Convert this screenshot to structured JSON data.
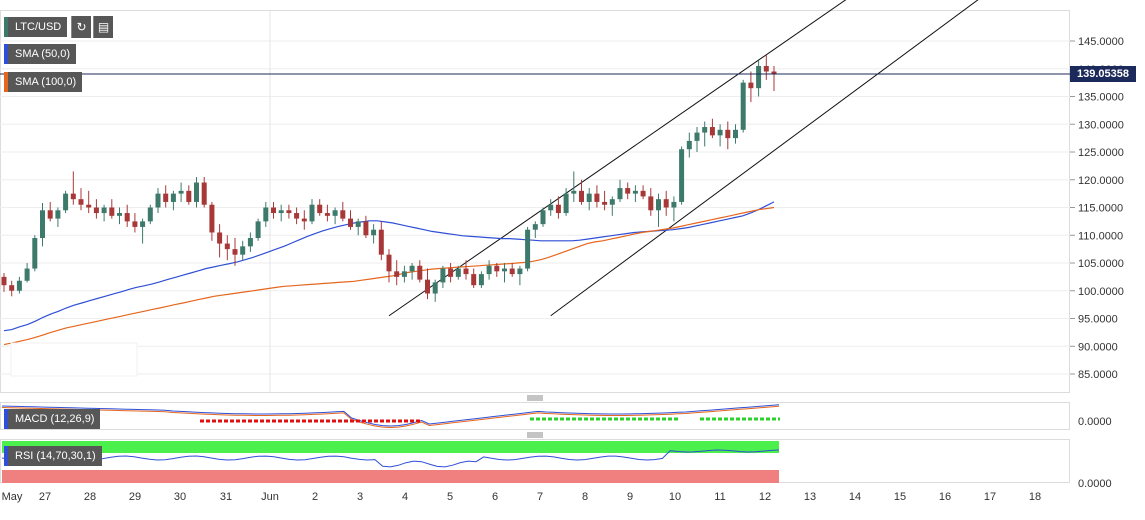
{
  "header": {
    "symbol": "LTC/USD",
    "sma1_label": "SMA (50,0)",
    "sma2_label": "SMA (100,0)",
    "macd_label": "MACD (12,26,9)",
    "rsi_label": "RSI (14,70,30,1)",
    "last_price": "139.05358"
  },
  "colors": {
    "up_candle": "#3d7a6c",
    "down_candle": "#a83838",
    "sma50": "#2f4fd6",
    "sma100": "#e5661e",
    "price_line": "#1b2a5a",
    "rsi_upper": "#4cf04c",
    "rsi_lower": "#f08080"
  },
  "chart_data": [
    {
      "type": "candlestick",
      "title": "LTC/USD",
      "ylim": [
        80,
        150
      ],
      "y_ticks": [
        "145.0000",
        "140.0000",
        "135.0000",
        "130.0000",
        "125.0000",
        "120.0000",
        "115.0000",
        "110.0000",
        "105.0000",
        "100.0000",
        "95.0000",
        "90.0000",
        "85.0000"
      ],
      "x_ticks": [
        "May",
        "27",
        "28",
        "29",
        "30",
        "31",
        "Jun",
        "2",
        "3",
        "4",
        "5",
        "6",
        "7",
        "8",
        "9",
        "10",
        "11",
        "12",
        "13",
        "14",
        "15",
        "16",
        "17",
        "18"
      ],
      "last_price": 139.05358,
      "candles": [
        [
          102.5,
          103.2,
          99.8,
          101.0
        ],
        [
          101.0,
          101.8,
          99.0,
          100.0
        ],
        [
          100.0,
          102.5,
          99.5,
          101.8
        ],
        [
          101.8,
          105.0,
          101.5,
          104.0
        ],
        [
          104.0,
          110.0,
          103.5,
          109.5
        ],
        [
          109.5,
          115.8,
          108.0,
          114.5
        ],
        [
          114.5,
          116.0,
          112.5,
          113.0
        ],
        [
          113.0,
          115.0,
          111.5,
          114.5
        ],
        [
          114.5,
          118.0,
          114.0,
          117.5
        ],
        [
          117.5,
          121.5,
          115.5,
          116.5
        ],
        [
          116.5,
          118.5,
          114.5,
          115.5
        ],
        [
          115.5,
          118.0,
          114.0,
          115.0
        ],
        [
          115.0,
          116.5,
          113.0,
          114.0
        ],
        [
          114.0,
          115.5,
          112.5,
          115.0
        ],
        [
          115.0,
          116.5,
          113.0,
          113.5
        ],
        [
          113.5,
          115.0,
          112.0,
          114.0
        ],
        [
          114.0,
          115.5,
          111.5,
          112.5
        ],
        [
          112.5,
          114.0,
          110.5,
          111.5
        ],
        [
          111.5,
          113.0,
          108.5,
          112.5
        ],
        [
          112.5,
          115.5,
          112.0,
          115.0
        ],
        [
          115.0,
          118.5,
          114.0,
          117.5
        ],
        [
          117.5,
          119.0,
          115.0,
          116.0
        ],
        [
          116.0,
          118.0,
          114.5,
          117.5
        ],
        [
          117.5,
          119.5,
          116.0,
          118.0
        ],
        [
          118.0,
          119.0,
          115.5,
          116.0
        ],
        [
          116.0,
          120.5,
          115.0,
          119.5
        ],
        [
          119.5,
          120.5,
          115.0,
          115.5
        ],
        [
          115.5,
          116.0,
          109.0,
          110.5
        ],
        [
          110.5,
          112.0,
          106.0,
          108.5
        ],
        [
          108.5,
          110.0,
          105.5,
          107.5
        ],
        [
          107.5,
          109.5,
          104.5,
          106.5
        ],
        [
          106.5,
          109.0,
          105.5,
          108.0
        ],
        [
          108.0,
          110.5,
          107.0,
          109.5
        ],
        [
          109.5,
          113.0,
          109.0,
          112.5
        ],
        [
          112.5,
          116.0,
          111.5,
          115.0
        ],
        [
          115.0,
          116.0,
          113.0,
          114.0
        ],
        [
          114.0,
          115.5,
          112.5,
          114.5
        ],
        [
          114.5,
          115.5,
          113.0,
          114.0
        ],
        [
          114.0,
          115.0,
          112.0,
          113.0
        ],
        [
          113.0,
          114.5,
          111.0,
          112.5
        ],
        [
          112.5,
          116.5,
          112.0,
          115.5
        ],
        [
          115.5,
          116.5,
          113.5,
          114.0
        ],
        [
          114.0,
          115.5,
          112.5,
          113.5
        ],
        [
          113.5,
          115.0,
          112.0,
          114.5
        ],
        [
          114.5,
          116.0,
          112.5,
          113.0
        ],
        [
          113.0,
          114.5,
          111.0,
          111.5
        ],
        [
          111.5,
          113.0,
          110.0,
          112.5
        ],
        [
          112.5,
          113.5,
          109.5,
          110.0
        ],
        [
          110.0,
          112.0,
          108.5,
          111.0
        ],
        [
          111.0,
          112.5,
          105.5,
          106.5
        ],
        [
          106.5,
          107.5,
          101.5,
          103.5
        ],
        [
          103.5,
          105.5,
          101.0,
          102.5
        ],
        [
          102.5,
          104.5,
          101.5,
          103.5
        ],
        [
          103.5,
          105.0,
          102.0,
          104.5
        ],
        [
          104.5,
          105.5,
          101.5,
          102.0
        ],
        [
          102.0,
          104.0,
          98.5,
          99.5
        ],
        [
          99.5,
          102.0,
          98.0,
          101.5
        ],
        [
          101.5,
          104.5,
          100.5,
          104.0
        ],
        [
          104.0,
          105.0,
          101.5,
          102.5
        ],
        [
          102.5,
          104.5,
          102.0,
          104.0
        ],
        [
          104.0,
          105.5,
          102.0,
          103.0
        ],
        [
          103.0,
          104.0,
          100.5,
          101.0
        ],
        [
          101.0,
          103.5,
          100.5,
          103.0
        ],
        [
          103.0,
          105.5,
          102.0,
          104.5
        ],
        [
          104.5,
          105.0,
          102.5,
          103.5
        ],
        [
          103.5,
          105.0,
          101.5,
          104.0
        ],
        [
          104.0,
          105.0,
          102.5,
          103.0
        ],
        [
          103.0,
          104.5,
          101.0,
          104.0
        ],
        [
          104.0,
          111.5,
          103.5,
          111.0
        ],
        [
          111.0,
          112.5,
          109.5,
          112.0
        ],
        [
          112.0,
          115.0,
          111.5,
          114.5
        ],
        [
          114.5,
          116.5,
          113.5,
          115.5
        ],
        [
          115.5,
          117.0,
          113.0,
          114.0
        ],
        [
          114.0,
          118.5,
          113.5,
          117.5
        ],
        [
          117.5,
          121.5,
          116.0,
          118.0
        ],
        [
          118.0,
          120.0,
          115.5,
          116.0
        ],
        [
          116.0,
          118.5,
          114.5,
          117.5
        ],
        [
          117.5,
          119.0,
          115.0,
          116.0
        ],
        [
          116.0,
          118.0,
          114.5,
          115.5
        ],
        [
          115.5,
          117.0,
          113.5,
          116.5
        ],
        [
          116.5,
          120.0,
          116.0,
          118.5
        ],
        [
          118.5,
          119.5,
          116.5,
          117.5
        ],
        [
          117.5,
          119.0,
          116.0,
          118.0
        ],
        [
          118.0,
          119.0,
          116.5,
          117.0
        ],
        [
          117.0,
          118.5,
          113.5,
          114.5
        ],
        [
          114.5,
          117.5,
          111.5,
          116.5
        ],
        [
          116.5,
          118.0,
          113.5,
          115.0
        ],
        [
          115.0,
          117.0,
          112.5,
          116.0
        ],
        [
          116.0,
          126.0,
          115.5,
          125.5
        ],
        [
          125.5,
          128.5,
          124.0,
          127.0
        ],
        [
          127.0,
          129.5,
          125.0,
          128.5
        ],
        [
          128.5,
          130.5,
          126.0,
          129.5
        ],
        [
          129.5,
          131.0,
          127.5,
          128.0
        ],
        [
          128.0,
          130.0,
          126.0,
          129.0
        ],
        [
          129.0,
          130.5,
          125.5,
          127.5
        ],
        [
          127.5,
          130.0,
          126.5,
          129.0
        ],
        [
          129.0,
          138.0,
          128.5,
          137.5
        ],
        [
          137.5,
          139.5,
          134.0,
          136.5
        ],
        [
          136.5,
          141.5,
          135.0,
          140.5
        ],
        [
          140.5,
          142.5,
          138.0,
          139.5
        ],
        [
          139.5,
          140.5,
          136.0,
          139.05358
        ]
      ],
      "series": [
        {
          "name": "SMA (50,0)",
          "values": [
            92.8,
            93.0,
            93.5,
            93.9,
            94.5,
            95.2,
            95.8,
            96.3,
            96.9,
            97.4,
            97.8,
            98.2,
            98.6,
            99.0,
            99.4,
            99.8,
            100.2,
            100.6,
            100.9,
            101.2,
            101.6,
            102.0,
            102.4,
            102.8,
            103.2,
            103.6,
            104.0,
            104.3,
            104.6,
            104.9,
            105.2,
            105.6,
            106.0,
            106.5,
            107.0,
            107.5,
            108.0,
            108.6,
            109.2,
            109.8,
            110.3,
            110.8,
            111.2,
            111.6,
            111.9,
            112.2,
            112.4,
            112.6,
            112.6,
            112.4,
            112.2,
            111.9,
            111.6,
            111.3,
            111.0,
            110.7,
            110.5,
            110.3,
            110.1,
            109.9,
            109.8,
            109.7,
            109.6,
            109.5,
            109.4,
            109.4,
            109.3,
            109.2,
            109.1,
            109.0,
            109.0,
            109.0,
            109.0,
            109.0,
            109.1,
            109.3,
            109.5,
            109.7,
            109.9,
            110.1,
            110.3,
            110.5,
            110.6,
            110.7,
            110.8,
            110.9,
            111.0,
            111.2,
            111.4,
            111.7,
            112.0,
            112.3,
            112.6,
            112.9,
            113.2,
            113.5,
            114.0,
            114.6,
            115.3,
            116.0
          ]
        },
        {
          "name": "SMA (100,0)",
          "values": [
            90.3,
            90.6,
            90.9,
            91.2,
            91.6,
            92.0,
            92.5,
            92.9,
            93.3,
            93.6,
            93.9,
            94.2,
            94.5,
            94.8,
            95.1,
            95.4,
            95.7,
            96.0,
            96.3,
            96.6,
            96.9,
            97.2,
            97.5,
            97.8,
            98.1,
            98.4,
            98.7,
            99.0,
            99.2,
            99.4,
            99.6,
            99.8,
            100.0,
            100.2,
            100.4,
            100.6,
            100.8,
            100.9,
            101.0,
            101.1,
            101.2,
            101.3,
            101.4,
            101.5,
            101.6,
            101.7,
            101.9,
            102.1,
            102.3,
            102.5,
            102.7,
            103.0,
            103.3,
            103.5,
            103.7,
            103.9,
            104.0,
            104.1,
            104.2,
            104.3,
            104.4,
            104.5,
            104.6,
            104.7,
            104.8,
            104.9,
            105.0,
            105.1,
            105.3,
            105.6,
            106.0,
            106.5,
            107.0,
            107.5,
            108.0,
            108.5,
            108.8,
            109.0,
            109.3,
            109.6,
            109.9,
            110.2,
            110.5,
            110.7,
            110.9,
            111.1,
            111.3,
            111.6,
            111.9,
            112.2,
            112.5,
            112.8,
            113.1,
            113.4,
            113.7,
            114.0,
            114.3,
            114.6,
            114.8,
            115.0
          ]
        }
      ],
      "channel_lines": [
        {
          "from_index": 50,
          "from_value": 95.5,
          "to_index": 112,
          "to_value": 155
        },
        {
          "from_index": 71,
          "from_value": 95.5,
          "to_index": 129,
          "to_value": 155
        }
      ]
    },
    {
      "type": "line",
      "title": "MACD (12,26,9)",
      "y_ticks": [
        "0.0000"
      ]
    },
    {
      "type": "line",
      "title": "RSI (14,70,30,1)",
      "y_ticks": [
        "0.0000"
      ]
    }
  ]
}
